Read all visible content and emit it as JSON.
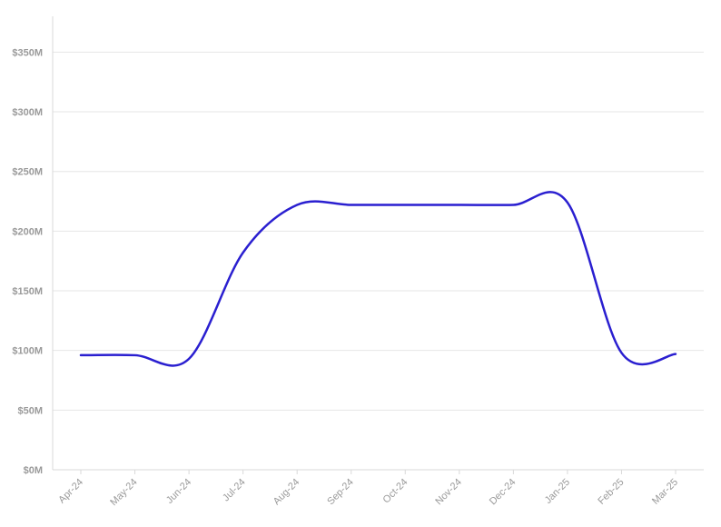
{
  "chart_data": {
    "type": "line",
    "title": "",
    "xlabel": "",
    "ylabel": "",
    "categories": [
      "Apr-24",
      "May-24",
      "Jun-24",
      "Jul-24",
      "Aug-24",
      "Sep-24",
      "Oct-24",
      "Nov-24",
      "Dec-24",
      "Jan-25",
      "Feb-25",
      "Mar-25"
    ],
    "y_ticks": [
      "$0M",
      "$50M",
      "$100M",
      "$150M",
      "$200M",
      "$250M",
      "$300M",
      "$350M"
    ],
    "y_tick_values": [
      0,
      50,
      100,
      150,
      200,
      250,
      300,
      350
    ],
    "ylim": [
      0,
      380
    ],
    "grid": true,
    "legend": "none",
    "series": [
      {
        "color": "#2a1fd0",
        "values": [
          96,
          96,
          93,
          182,
          222,
          222,
          222,
          222,
          222,
          224,
          98,
          97
        ]
      }
    ]
  }
}
